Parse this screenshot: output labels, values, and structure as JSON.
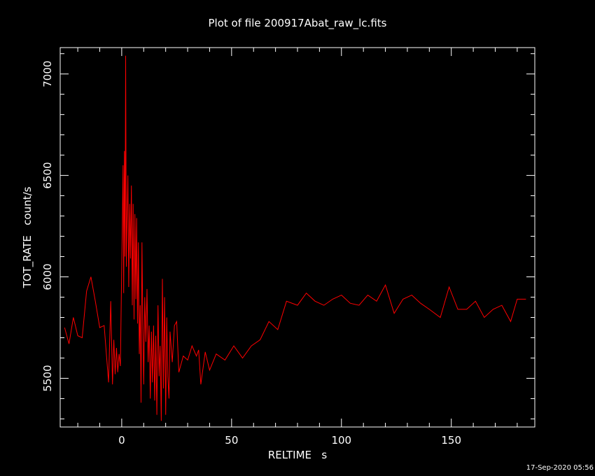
{
  "title": "Plot of file 200917Abat_raw_lc.fits",
  "timestamp": "17-Sep-2020 05:56",
  "colors": {
    "background": "#000000",
    "axes": "#ffffff",
    "series": "#ff0000"
  },
  "chart_data": {
    "type": "line",
    "title": "Plot of file 200917Abat_raw_lc.fits",
    "xlabel": "RELTIME   s",
    "ylabel": "TOT_RATE   count/s",
    "xlim": [
      -28,
      188
    ],
    "ylim": [
      5260,
      7130
    ],
    "xticks": [
      0,
      50,
      100,
      150
    ],
    "xtick_labels": [
      "0",
      "50",
      "100",
      "150"
    ],
    "yticks": [
      5500,
      6000,
      6500,
      7000
    ],
    "ytick_labels": [
      "5500",
      "6000",
      "6500",
      "7000"
    ],
    "grid": false,
    "series": [
      {
        "color": "#ff0000",
        "x": [
          -26,
          -24,
          -22,
          -20,
          -18,
          -16,
          -14,
          -12,
          -10,
          -8,
          -6,
          -5,
          -4.2,
          -3.6,
          -3,
          -2.4,
          -1.8,
          -1.2,
          -0.6,
          -0.2,
          0.2,
          0.6,
          0.9,
          1.2,
          1.5,
          1.8,
          2.1,
          2.4,
          2.8,
          3.2,
          3.6,
          4.0,
          4.4,
          4.8,
          5.2,
          5.6,
          6.0,
          6.4,
          6.8,
          7.2,
          7.6,
          8.0,
          8.4,
          8.8,
          9.2,
          9.6,
          10.0,
          10.5,
          11.0,
          11.5,
          12.0,
          12.5,
          13.0,
          13.5,
          14.0,
          14.5,
          15.0,
          15.5,
          16.0,
          16.5,
          17.0,
          17.5,
          18.0,
          18.5,
          19.0,
          19.5,
          20.0,
          20.5,
          21.0,
          21.5,
          22.0,
          23.0,
          24.0,
          25.0,
          26.0,
          28.0,
          30.0,
          32.0,
          34.0,
          35.0,
          36.0,
          38.0,
          40.0,
          43.0,
          47.0,
          51.0,
          55.0,
          59.0,
          63.0,
          67.0,
          71.0,
          75.0,
          80.0,
          84.0,
          88.0,
          92.0,
          96.0,
          100.0,
          104.0,
          108.0,
          112.0,
          116.0,
          120.0,
          124.0,
          128.0,
          132.0,
          136.0,
          140.0,
          145.0,
          149.0,
          153.0,
          157.0,
          161.0,
          165.0,
          169.0,
          173.0,
          177.0,
          180.0,
          184.0
        ],
        "values": [
          5750,
          5670,
          5800,
          5710,
          5700,
          5930,
          6000,
          5880,
          5750,
          5760,
          5480,
          5880,
          5470,
          5690,
          5520,
          5650,
          5530,
          5620,
          5560,
          5900,
          6200,
          6550,
          5920,
          6620,
          6100,
          7090,
          6050,
          6270,
          6500,
          5950,
          6360,
          6090,
          6450,
          5860,
          6360,
          5790,
          6310,
          5890,
          6290,
          5770,
          6170,
          5620,
          5860,
          5380,
          6170,
          5780,
          5470,
          5900,
          5680,
          5940,
          5580,
          5760,
          5400,
          5730,
          5480,
          5760,
          5390,
          5710,
          5320,
          5860,
          5510,
          5660,
          5290,
          5990,
          5450,
          5900,
          5320,
          5800,
          5510,
          5400,
          5730,
          5580,
          5760,
          5780,
          5530,
          5610,
          5590,
          5660,
          5610,
          5640,
          5470,
          5630,
          5540,
          5620,
          5590,
          5660,
          5600,
          5660,
          5690,
          5780,
          5740,
          5880,
          5860,
          5920,
          5880,
          5860,
          5890,
          5910,
          5870,
          5860,
          5910,
          5880,
          5960,
          5820,
          5890,
          5910,
          5870,
          5840,
          5800,
          5950,
          5840,
          5840,
          5880,
          5800,
          5840,
          5860,
          5780,
          5890,
          5890
        ]
      }
    ]
  }
}
